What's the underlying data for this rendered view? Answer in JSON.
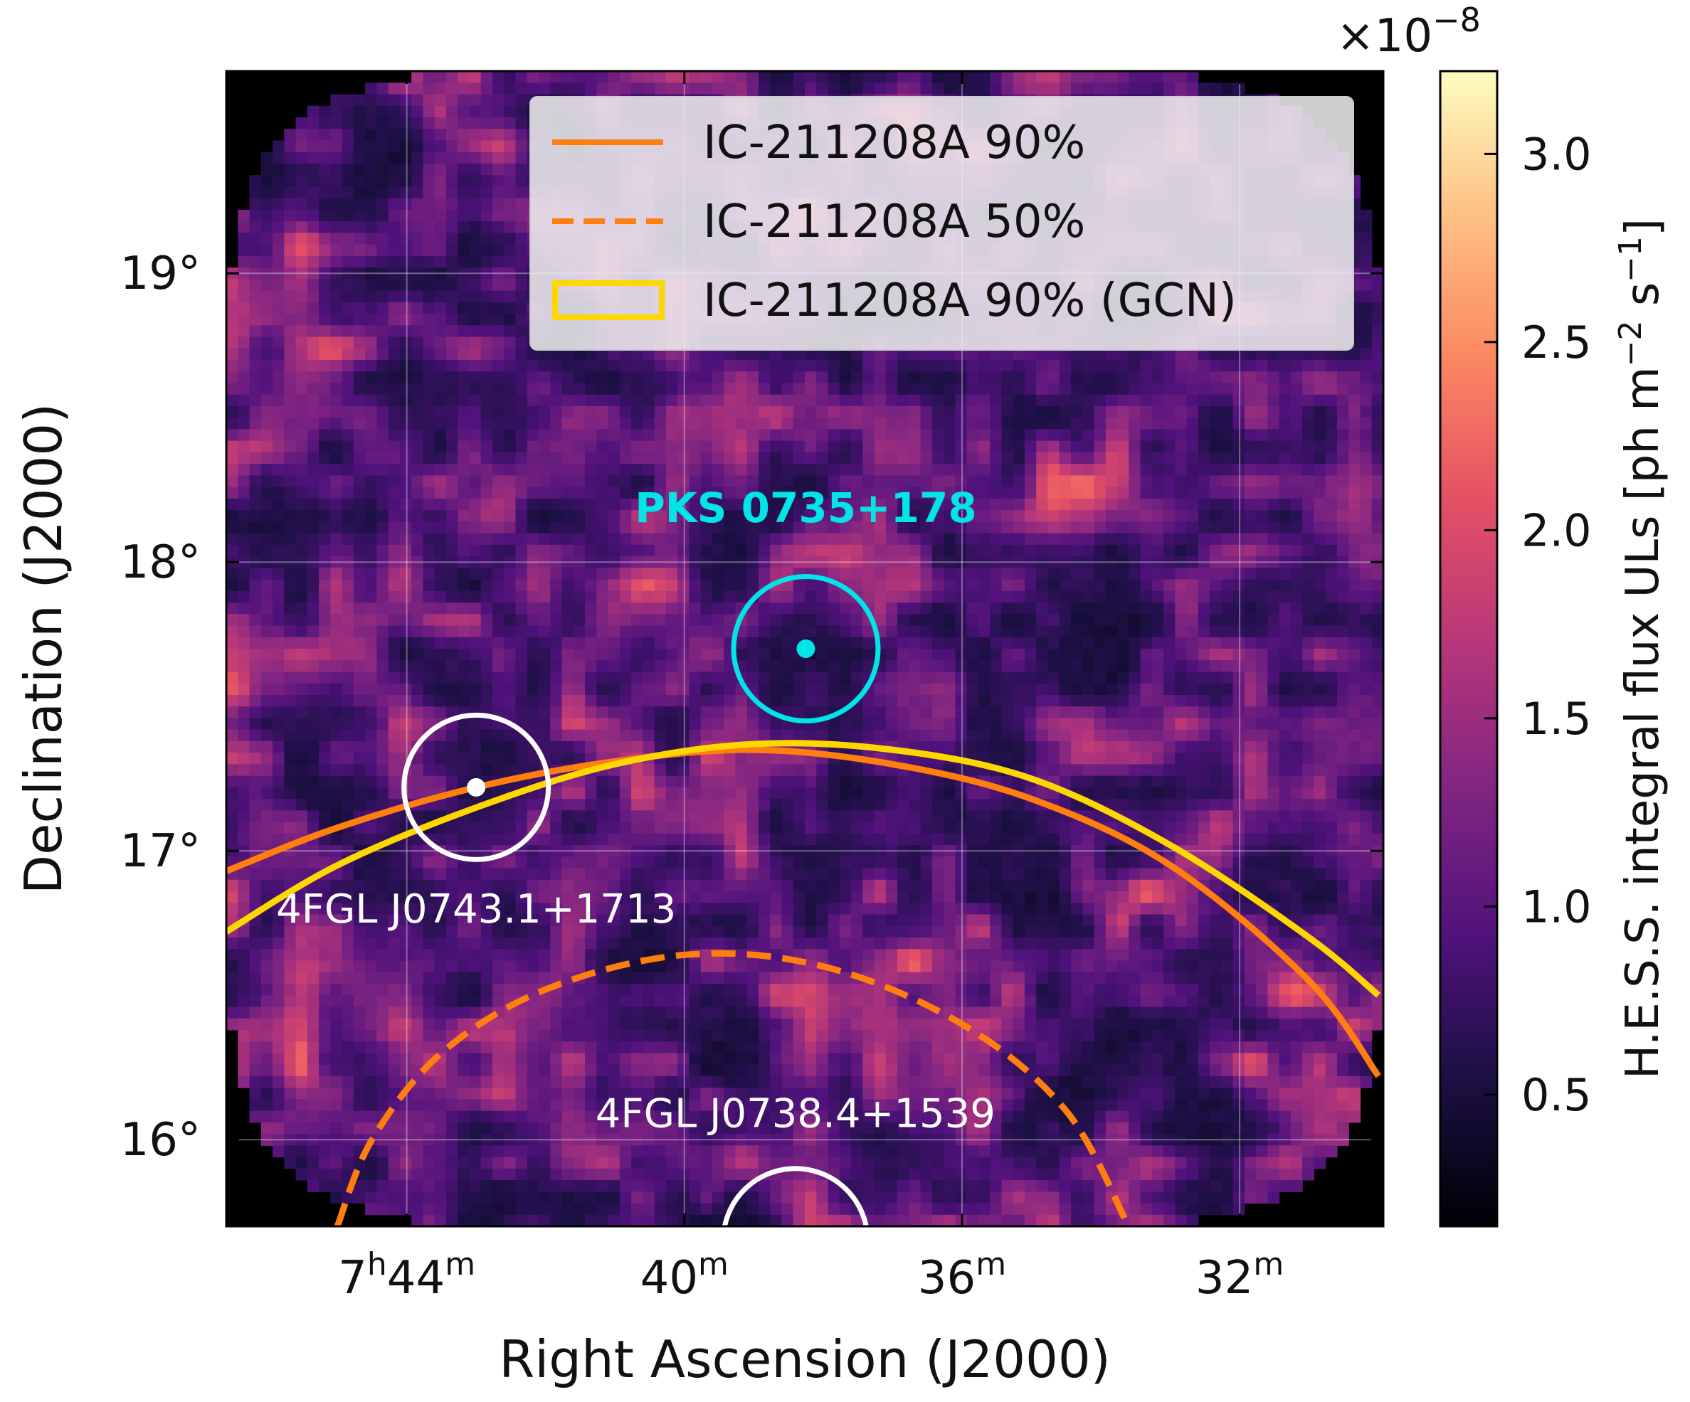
{
  "chart_data": {
    "type": "heatmap",
    "xlabel": "Right Ascension (J2000)",
    "ylabel": "Declination (J2000)",
    "x_unit": "RA (h m)",
    "y_unit": "Dec (deg)",
    "xlim": [
      "7h47m",
      "7h30m"
    ],
    "ylim": [
      15.7,
      19.7
    ],
    "x_ticks": [
      {
        "ra_min": 464,
        "label_main": "7",
        "label_h": "h",
        "label_m": "44",
        "label_sup": "m"
      },
      {
        "ra_min": 460,
        "label_main": "40",
        "label_sup": "m"
      },
      {
        "ra_min": 456,
        "label_main": "36",
        "label_sup": "m"
      },
      {
        "ra_min": 452,
        "label_main": "32",
        "label_sup": "m"
      }
    ],
    "y_ticks": [
      {
        "dec": 16,
        "label": "16°"
      },
      {
        "dec": 17,
        "label": "17°"
      },
      {
        "dec": 18,
        "label": "18°"
      },
      {
        "dec": 19,
        "label": "19°"
      }
    ],
    "grid": true,
    "colormap": "magma",
    "colorbar": {
      "label": "H.E.S.S. integral flux ULs [ph m⁻² s⁻¹]",
      "label_main": "H.E.S.S. integral flux ULs [ph m",
      "label_exp1": "−2",
      "label_mid": " s",
      "label_exp2": "−1",
      "label_end": "]",
      "multiplier": "×10",
      "multiplier_exp": "−8",
      "range": [
        0.15,
        3.22
      ],
      "ticks": [
        0.5,
        1.0,
        1.5,
        2.0,
        2.5,
        3.0
      ],
      "tick_labels": [
        "0.5",
        "1.0",
        "1.5",
        "2.0",
        "2.5",
        "3.0"
      ]
    },
    "legend": {
      "placement": "top-right",
      "entries": [
        {
          "label": "IC-211208A 90%",
          "style": "solid",
          "color": "#ff7f0e"
        },
        {
          "label": "IC-211208A 50%",
          "style": "dashed",
          "color": "#ff7f0e"
        },
        {
          "label": "IC-211208A 90% (GCN)",
          "style": "box",
          "color": "#ffd700"
        }
      ]
    },
    "sources": [
      {
        "name": "PKS 0735+178",
        "ra_min": 458.25,
        "dec": 17.7,
        "color": "#00e5e5",
        "label_bold": true
      },
      {
        "name": "4FGL J0743.1+1713",
        "ra_min": 463.0,
        "dec": 17.22,
        "color": "#ffffff",
        "label_bold": false
      },
      {
        "name": "4FGL J0738.4+1539",
        "ra_min": 458.4,
        "dec": 15.65,
        "color": "#ffffff",
        "label_bold": false
      }
    ],
    "contours": [
      {
        "name": "IC-211208A 90%",
        "style": "solid",
        "color": "#ff7f0e",
        "points": [
          [
            466.6,
            16.93
          ],
          [
            465.0,
            17.08
          ],
          [
            463.0,
            17.22
          ],
          [
            461.0,
            17.31
          ],
          [
            459.0,
            17.35
          ],
          [
            457.0,
            17.3
          ],
          [
            455.0,
            17.18
          ],
          [
            453.0,
            16.95
          ],
          [
            451.0,
            16.55
          ],
          [
            450.0,
            16.22
          ]
        ]
      },
      {
        "name": "IC-211208A 50%",
        "style": "dashed",
        "color": "#ff7f0e",
        "points": [
          [
            465.0,
            15.7
          ],
          [
            464.5,
            16.0
          ],
          [
            463.5,
            16.3
          ],
          [
            462.0,
            16.52
          ],
          [
            460.0,
            16.64
          ],
          [
            458.0,
            16.6
          ],
          [
            456.0,
            16.4
          ],
          [
            454.5,
            16.1
          ],
          [
            453.6,
            15.7
          ]
        ]
      },
      {
        "name": "IC-211208A 90% (GCN)",
        "style": "solid",
        "color": "#ffd700",
        "points": [
          [
            466.6,
            16.72
          ],
          [
            465.0,
            16.95
          ],
          [
            463.0,
            17.15
          ],
          [
            461.0,
            17.3
          ],
          [
            459.0,
            17.37
          ],
          [
            457.0,
            17.35
          ],
          [
            455.0,
            17.25
          ],
          [
            453.0,
            17.02
          ],
          [
            451.0,
            16.7
          ],
          [
            450.0,
            16.5
          ]
        ]
      }
    ],
    "source_circle_radius_deg": 0.25
  }
}
